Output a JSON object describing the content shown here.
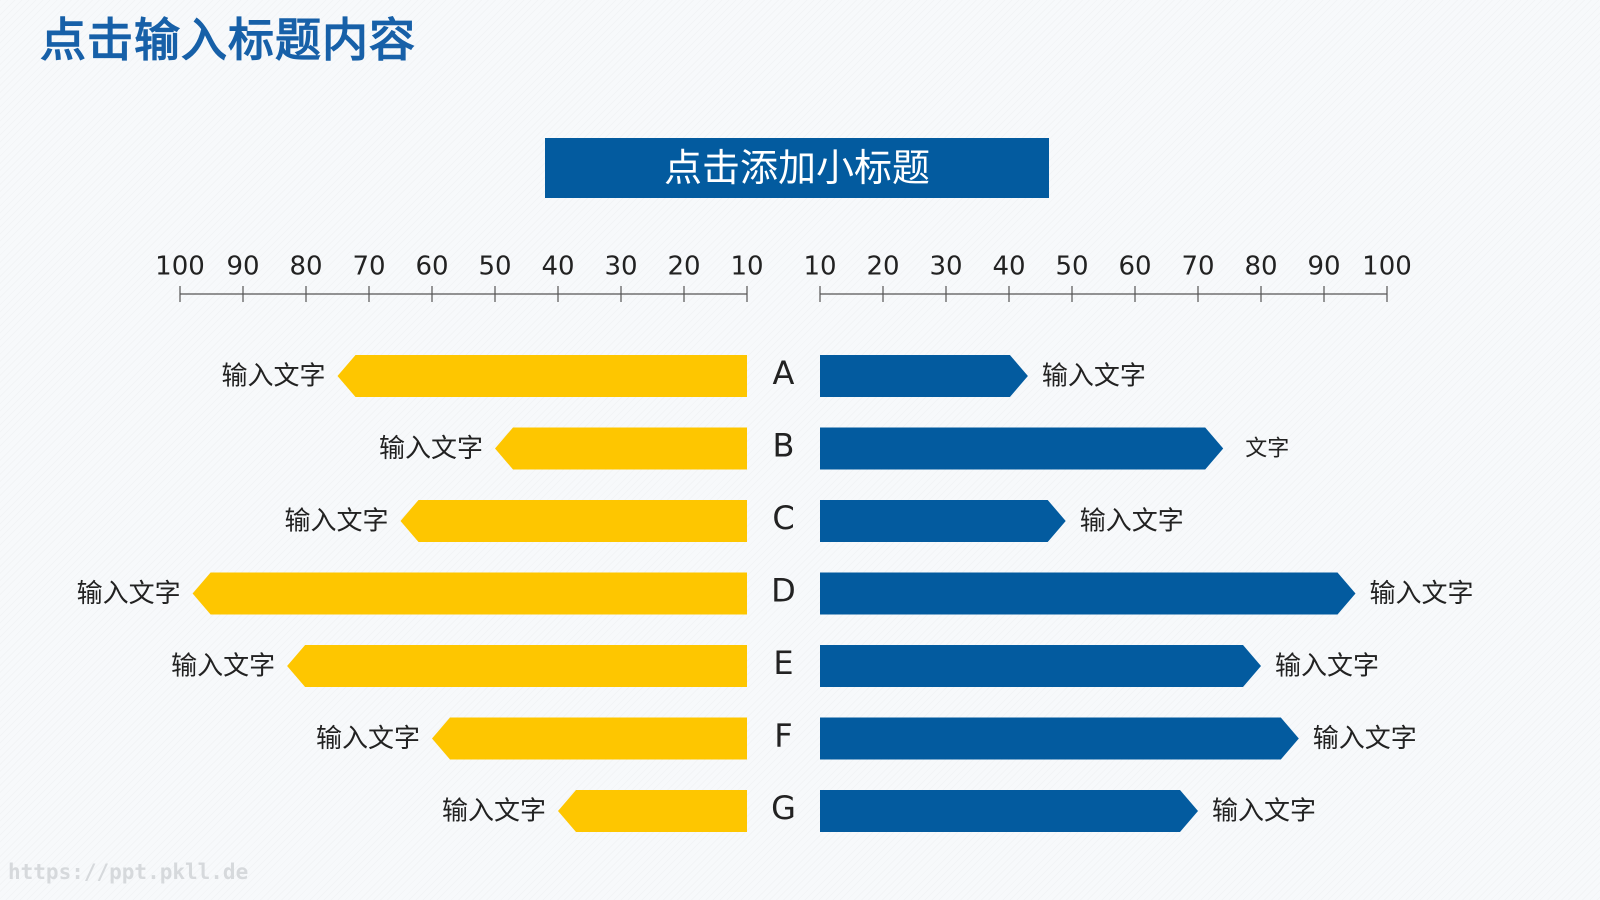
{
  "title": "点击输入标题内容",
  "subtitle": "点击添加小标题",
  "watermark": "https://ppt.pkll.de",
  "colors": {
    "title": "#1760a8",
    "subtitle_bg": "#035b9f",
    "left_bar": "#fec600",
    "right_bar": "#035b9f",
    "axis": "#555555",
    "text": "#222222"
  },
  "chart_data": {
    "type": "bar",
    "orientation": "horizontal-diverging",
    "categories": [
      "A",
      "B",
      "C",
      "D",
      "E",
      "F",
      "G"
    ],
    "axis": {
      "left_ticks": [
        100,
        90,
        80,
        70,
        60,
        50,
        40,
        30,
        20,
        10
      ],
      "right_ticks": [
        10,
        20,
        30,
        40,
        50,
        60,
        70,
        80,
        90,
        100
      ],
      "range": [
        10,
        100
      ]
    },
    "series": [
      {
        "side": "left",
        "color": "#fec600",
        "values": [
          75,
          50,
          65,
          98,
          83,
          60,
          40
        ],
        "labels": [
          "输入文字",
          "输入文字",
          "输入文字",
          "输入文字",
          "输入文字",
          "输入文字",
          "输入文字"
        ]
      },
      {
        "side": "right",
        "color": "#035b9f",
        "values": [
          43,
          74,
          49,
          95,
          80,
          86,
          70
        ],
        "labels": [
          "输入文字",
          "文字",
          "输入文字",
          "输入文字",
          "输入文字",
          "输入文字",
          "输入文字"
        ]
      }
    ]
  }
}
